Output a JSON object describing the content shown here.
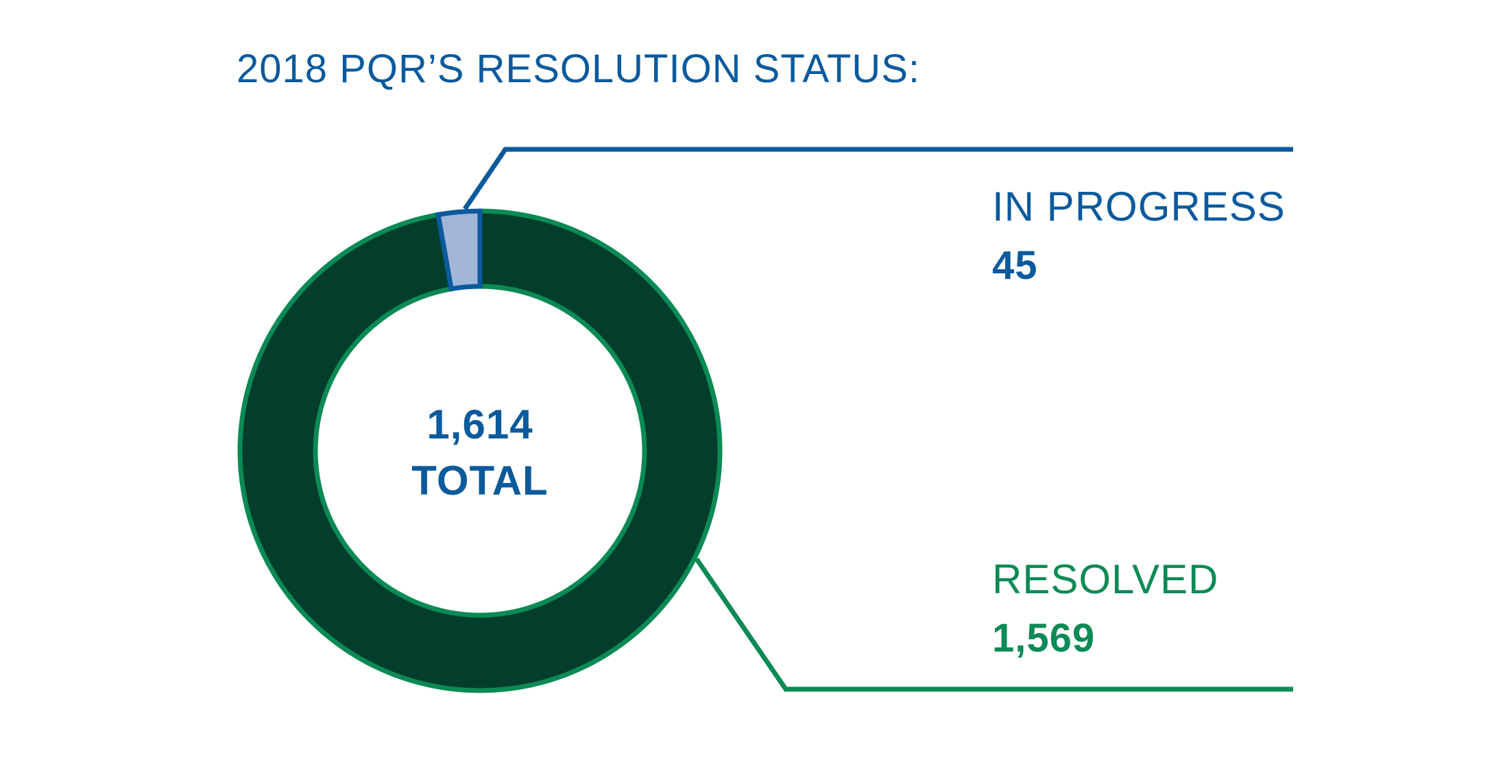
{
  "colors": {
    "blue": "#0a5a9c",
    "green": "#0b8a55",
    "dark_green": "#033e2c",
    "light_blue": "#a2b6d8",
    "background": "#ffffff"
  },
  "chart_data": {
    "type": "pie",
    "variant": "donut",
    "title": "2018 PQR’S RESOLUTION STATUS:",
    "total": {
      "value": 1614,
      "value_label": "1,614",
      "label": "TOTAL"
    },
    "slices": [
      {
        "label": "IN PROGRESS",
        "value": 45,
        "value_label": "45",
        "fill": "#a2b6d8",
        "stroke": "#0a5a9c",
        "text_color": "#0a5a9c",
        "callout_position": "top-right"
      },
      {
        "label": "RESOLVED",
        "value": 1569,
        "value_label": "1,569",
        "fill": "#033e2c",
        "stroke": "#0b8a55",
        "text_color": "#0b8a55",
        "callout_position": "bottom-right"
      }
    ],
    "legend": "callout-right"
  }
}
